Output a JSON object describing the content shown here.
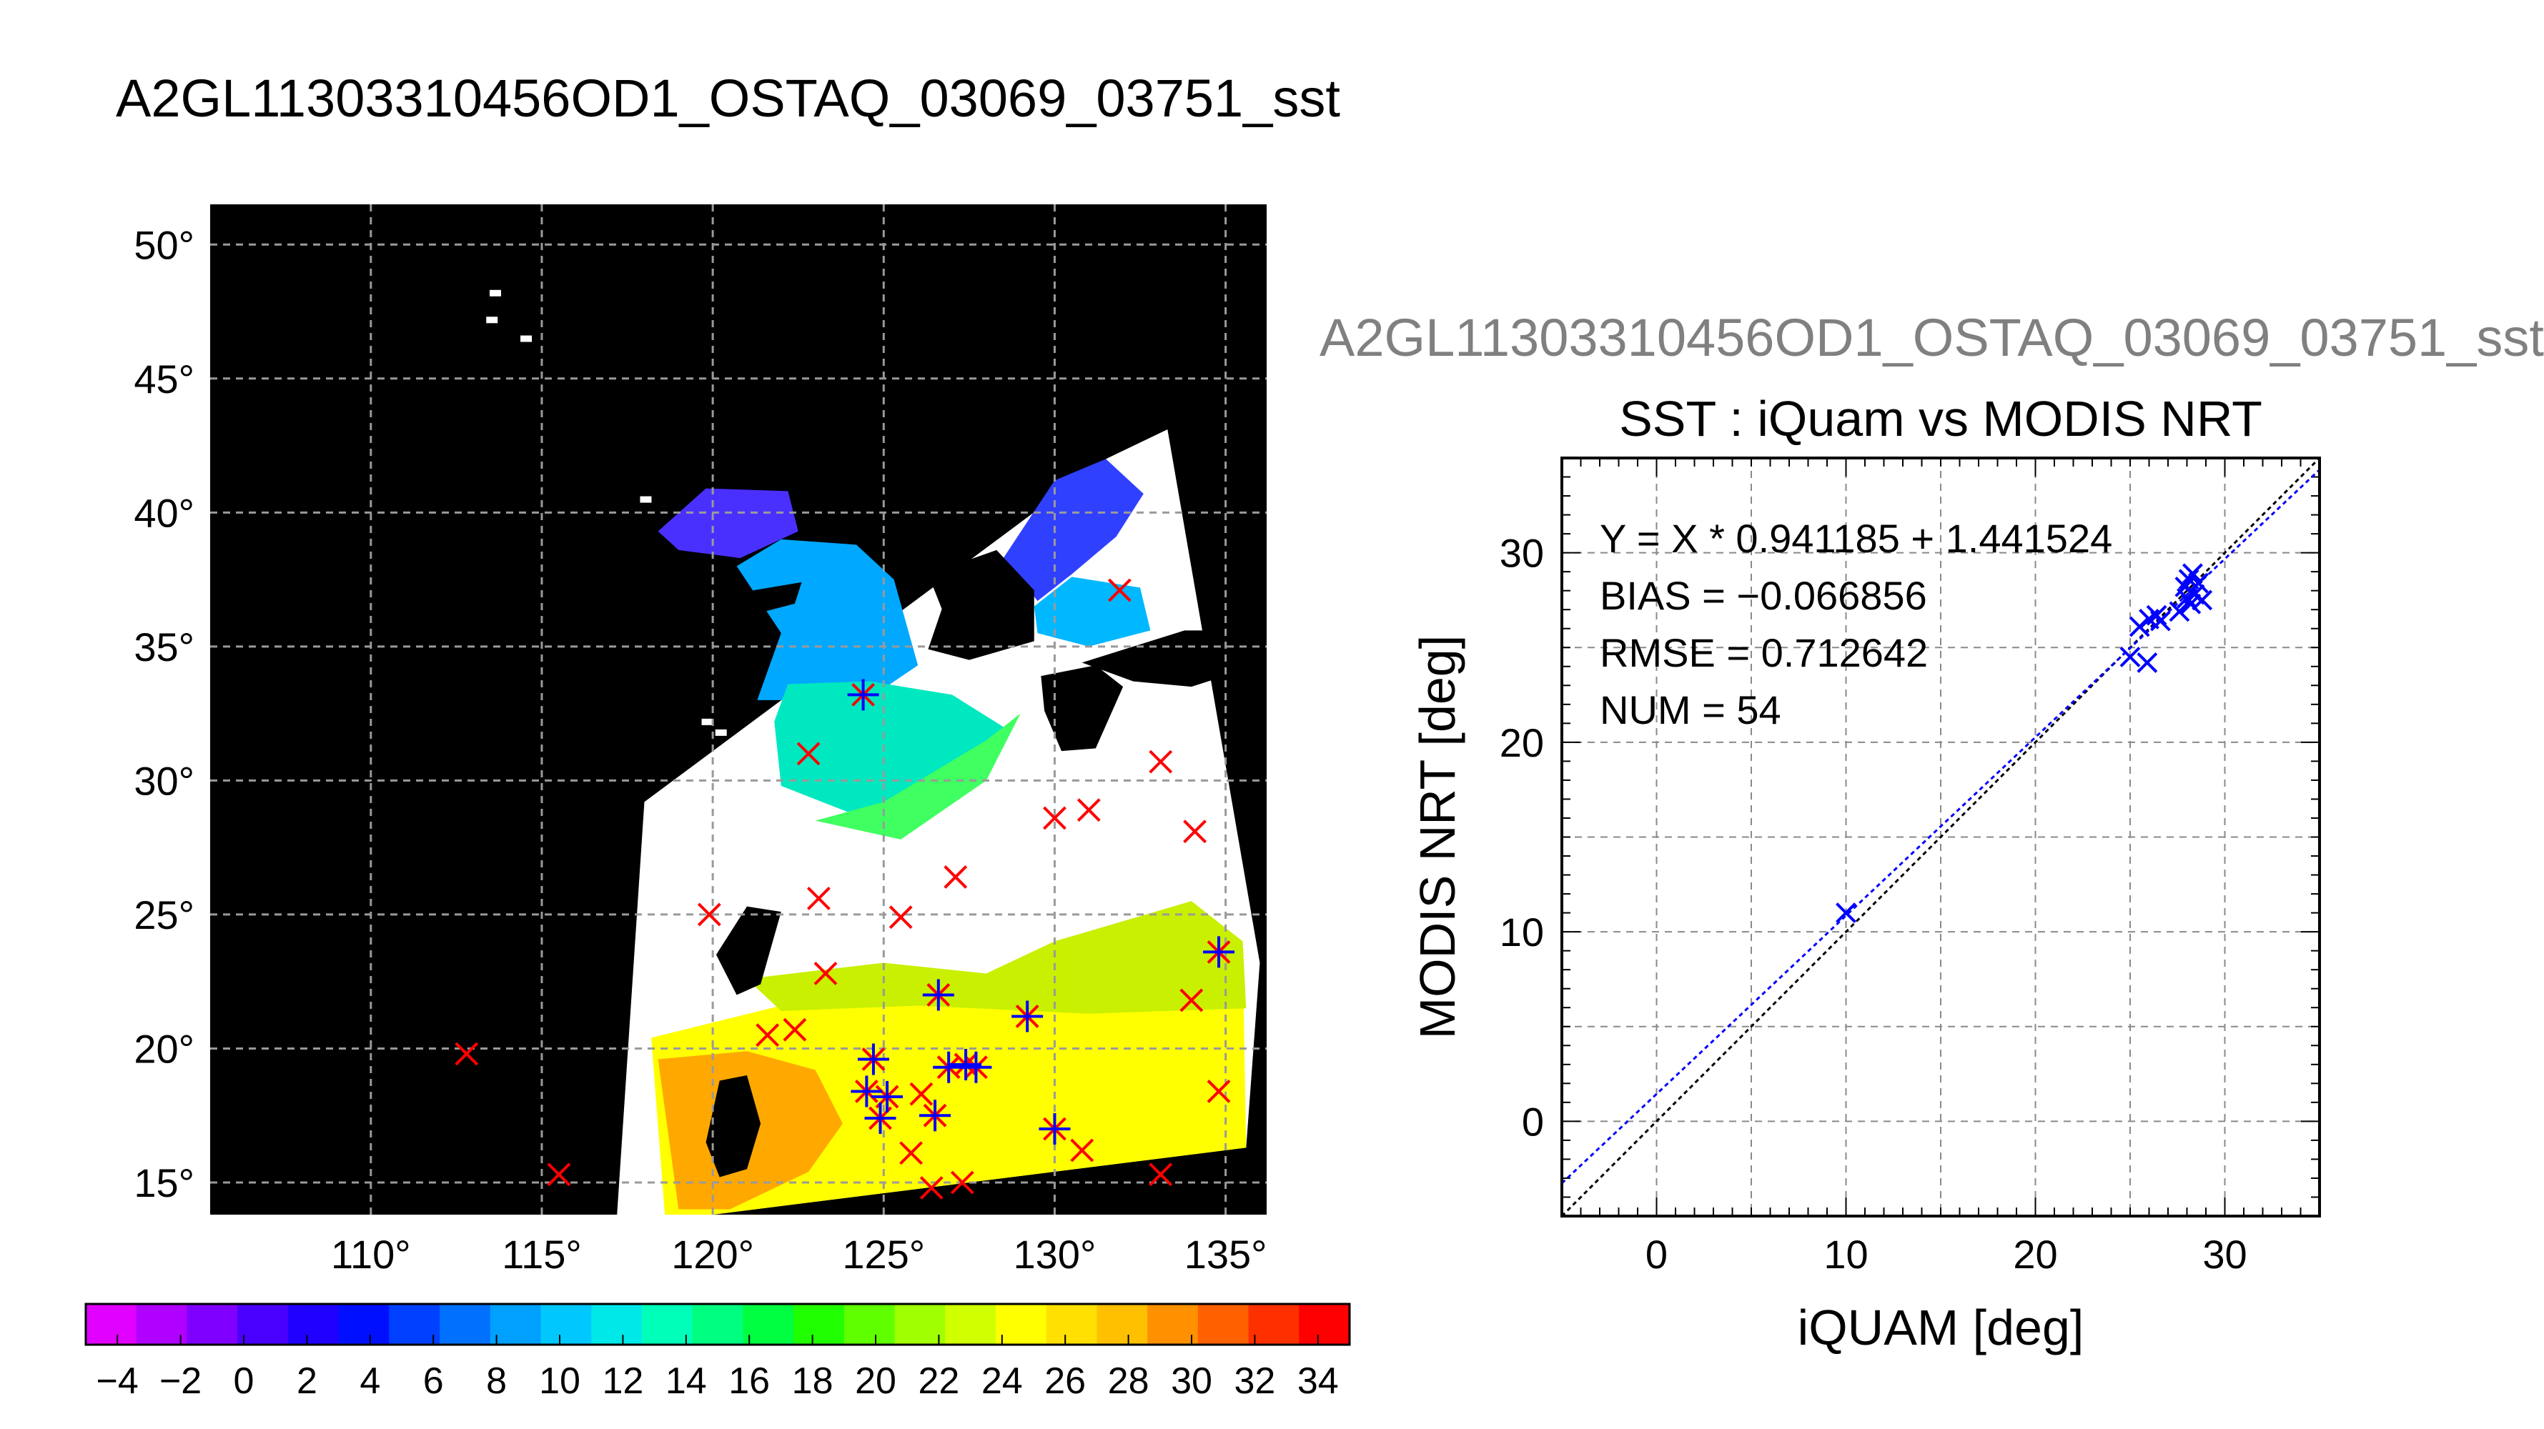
{
  "title": "A2GL11303310456OD1_OSTAQ_03069_03751_sst",
  "right_header": "A2GL11303310456OD1_OSTAQ_03069_03751_sst",
  "colors": {
    "match_mark": "#ff0000",
    "mod_mark": "#0000ff",
    "map_bg": "#000000",
    "fit_line": "#0000ff",
    "one_to_one": "#000000"
  },
  "chart_data": [
    {
      "type": "heatmap",
      "name": "sst_map",
      "lon_ticks": [
        "110°",
        "115°",
        "120°",
        "125°",
        "130°",
        "135°"
      ],
      "lat_ticks": [
        "50°",
        "45°",
        "40°",
        "35°",
        "30°",
        "25°",
        "20°",
        "15°"
      ],
      "lon_range": [
        105.3,
        136.2
      ],
      "lat_range": [
        13.8,
        51.5
      ],
      "grid": true,
      "colorbar": {
        "labels": [
          "-4",
          "-2",
          "0",
          "2",
          "4",
          "6",
          "8",
          "10",
          "12",
          "14",
          "16",
          "18",
          "20",
          "22",
          "24",
          "26",
          "28",
          "30",
          "32",
          "34"
        ],
        "range": [
          -5,
          35
        ],
        "colors": [
          "#e000ff",
          "#b000ff",
          "#7f00ff",
          "#4a00ff",
          "#2000ff",
          "#0010ff",
          "#0040ff",
          "#0070ff",
          "#00a0ff",
          "#00c8ff",
          "#00e8e8",
          "#00ffb8",
          "#00ff80",
          "#00ff40",
          "#20ff00",
          "#60ff00",
          "#a0ff00",
          "#d0ff00",
          "#ffff00",
          "#ffe000",
          "#ffc000",
          "#ff9000",
          "#ff6000",
          "#ff3000",
          "#ff0000"
        ]
      },
      "match_points": [
        [
          112.8,
          19.8
        ],
        [
          115.5,
          15.3
        ],
        [
          119.9,
          25.0
        ],
        [
          121.6,
          20.5
        ],
        [
          122.4,
          20.7
        ],
        [
          122.8,
          31.0
        ],
        [
          123.1,
          25.6
        ],
        [
          123.3,
          22.8
        ],
        [
          124.4,
          33.2
        ],
        [
          124.5,
          18.4
        ],
        [
          124.7,
          19.6
        ],
        [
          124.9,
          17.4
        ],
        [
          125.1,
          18.2
        ],
        [
          125.5,
          24.9
        ],
        [
          125.8,
          16.1
        ],
        [
          126.1,
          18.3
        ],
        [
          126.4,
          14.8
        ],
        [
          126.5,
          17.5
        ],
        [
          126.6,
          22.0
        ],
        [
          126.9,
          19.3
        ],
        [
          127.1,
          26.4
        ],
        [
          127.3,
          15.0
        ],
        [
          127.4,
          19.4
        ],
        [
          127.7,
          19.3
        ],
        [
          129.2,
          21.2
        ],
        [
          130.0,
          17.0
        ],
        [
          130.0,
          28.6
        ],
        [
          130.8,
          16.2
        ],
        [
          131.0,
          28.9
        ],
        [
          131.9,
          37.1
        ],
        [
          133.1,
          15.3
        ],
        [
          133.1,
          30.7
        ],
        [
          134.1,
          28.1
        ],
        [
          134.0,
          21.8
        ],
        [
          134.8,
          23.6
        ],
        [
          134.8,
          18.4
        ]
      ],
      "modis_points": [
        [
          124.4,
          33.2
        ],
        [
          124.5,
          18.4
        ],
        [
          124.7,
          19.6
        ],
        [
          124.9,
          17.4
        ],
        [
          125.1,
          18.2
        ],
        [
          126.5,
          17.5
        ],
        [
          126.6,
          22.0
        ],
        [
          126.9,
          19.3
        ],
        [
          127.4,
          19.4
        ],
        [
          127.7,
          19.3
        ],
        [
          129.2,
          21.2
        ],
        [
          130.0,
          17.0
        ],
        [
          134.8,
          23.6
        ]
      ]
    },
    {
      "type": "scatter",
      "name": "sst_scatter",
      "title": "SST : iQuam vs MODIS NRT",
      "xlabel": "iQUAM [deg]",
      "ylabel": "MODIS NRT [deg]",
      "xlim": [
        -5,
        35
      ],
      "ylim": [
        -5,
        35
      ],
      "xticks": [
        "0",
        "10",
        "20",
        "30"
      ],
      "yticks": [
        "0",
        "10",
        "20",
        "30"
      ],
      "grid": true,
      "stats": [
        "Y = X * 0.941185 + 1.441524",
        "BIAS = −0.066856",
        "RMSE = 0.712642",
        "NUM = 54"
      ],
      "fit": {
        "slope": 0.941185,
        "intercept": 1.441524
      },
      "points": [
        [
          10.0,
          11.0
        ],
        [
          25.0,
          24.5
        ],
        [
          25.9,
          24.2
        ],
        [
          25.5,
          26.1
        ],
        [
          26.0,
          26.5
        ],
        [
          26.4,
          26.7
        ],
        [
          26.6,
          26.4
        ],
        [
          27.6,
          26.9
        ],
        [
          27.9,
          28.2
        ],
        [
          28.1,
          28.6
        ],
        [
          28.3,
          28.9
        ],
        [
          28.0,
          27.6
        ],
        [
          28.4,
          27.8
        ],
        [
          28.6,
          28.4
        ],
        [
          28.8,
          27.5
        ],
        [
          28.2,
          27.3
        ]
      ]
    }
  ]
}
